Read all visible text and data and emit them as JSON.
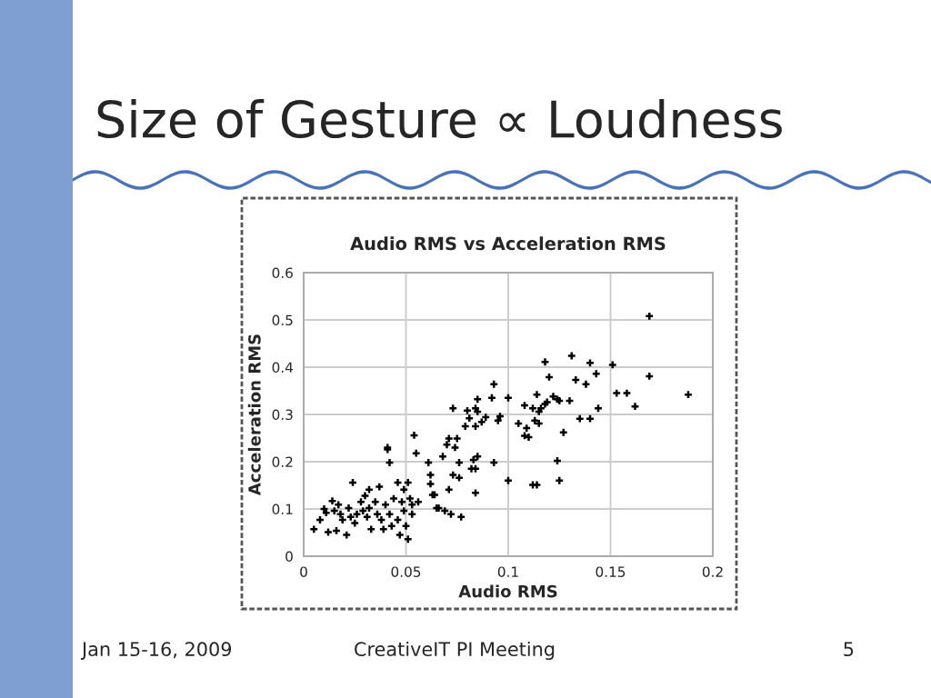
{
  "chart_data": {
    "type": "scatter",
    "title": "Audio RMS vs Acceleration RMS",
    "xlabel": "Audio RMS",
    "ylabel": "Acceleration RMS",
    "annotations": [
      "Size of Gesture ∝ Loudness",
      "Jan 15-16, 2009",
      "CreativeIT PI Meeting",
      "5"
    ],
    "x": [
      0.005,
      0.008,
      0.01,
      0.011,
      0.012,
      0.014,
      0.015,
      0.016,
      0.017,
      0.018,
      0.019,
      0.021,
      0.022,
      0.023,
      0.024,
      0.025,
      0.026,
      0.028,
      0.029,
      0.03,
      0.031,
      0.032,
      0.032,
      0.033,
      0.035,
      0.036,
      0.037,
      0.038,
      0.039,
      0.04,
      0.041,
      0.041,
      0.042,
      0.042,
      0.043,
      0.044,
      0.046,
      0.046,
      0.047,
      0.048,
      0.049,
      0.049,
      0.05,
      0.051,
      0.051,
      0.052,
      0.053,
      0.053,
      0.054,
      0.055,
      0.056,
      0.061,
      0.062,
      0.062,
      0.063,
      0.064,
      0.065,
      0.066,
      0.068,
      0.069,
      0.07,
      0.071,
      0.071,
      0.072,
      0.073,
      0.073,
      0.074,
      0.075,
      0.076,
      0.076,
      0.077,
      0.079,
      0.08,
      0.081,
      0.082,
      0.083,
      0.084,
      0.085,
      0.084,
      0.085,
      0.084,
      0.085,
      0.084,
      0.093,
      0.092,
      0.089,
      0.087,
      0.096,
      0.095,
      0.093,
      0.1,
      0.1,
      0.105,
      0.108,
      0.108,
      0.109,
      0.11,
      0.112,
      0.113,
      0.114,
      0.115,
      0.115,
      0.116,
      0.118,
      0.118,
      0.119,
      0.12,
      0.112,
      0.114,
      0.122,
      0.124,
      0.125,
      0.124,
      0.125,
      0.127,
      0.13,
      0.131,
      0.133,
      0.135,
      0.138,
      0.14,
      0.14,
      0.143,
      0.144,
      0.151,
      0.153,
      0.158,
      0.162,
      0.169,
      0.169,
      0.188
    ],
    "values": [
      0.057,
      0.077,
      0.1,
      0.092,
      0.051,
      0.117,
      0.096,
      0.054,
      0.109,
      0.089,
      0.077,
      0.045,
      0.102,
      0.083,
      0.156,
      0.07,
      0.089,
      0.115,
      0.096,
      0.128,
      0.083,
      0.102,
      0.141,
      0.057,
      0.115,
      0.089,
      0.147,
      0.077,
      0.057,
      0.109,
      0.226,
      0.23,
      0.198,
      0.089,
      0.064,
      0.122,
      0.077,
      0.156,
      0.045,
      0.115,
      0.141,
      0.096,
      0.064,
      0.036,
      0.156,
      0.122,
      0.109,
      0.089,
      0.256,
      0.218,
      0.115,
      0.198,
      0.153,
      0.172,
      0.13,
      0.13,
      0.102,
      0.102,
      0.211,
      0.096,
      0.236,
      0.249,
      0.141,
      0.089,
      0.172,
      0.313,
      0.23,
      0.249,
      0.198,
      0.166,
      0.083,
      0.275,
      0.308,
      0.292,
      0.185,
      0.204,
      0.134,
      0.332,
      0.313,
      0.306,
      0.275,
      0.211,
      0.185,
      0.364,
      0.335,
      0.294,
      0.284,
      0.296,
      0.287,
      0.198,
      0.335,
      0.16,
      0.281,
      0.319,
      0.255,
      0.271,
      0.252,
      0.313,
      0.287,
      0.342,
      0.281,
      0.306,
      0.313,
      0.411,
      0.322,
      0.326,
      0.379,
      0.151,
      0.151,
      0.338,
      0.332,
      0.329,
      0.202,
      0.16,
      0.262,
      0.329,
      0.424,
      0.373,
      0.291,
      0.364,
      0.409,
      0.291,
      0.386,
      0.313,
      0.405,
      0.345,
      0.345,
      0.317,
      0.508,
      0.381,
      0.342
    ],
    "color": "#000000",
    "marker": "cross",
    "xlim": [
      0,
      0.2
    ],
    "ylim": [
      0,
      0.6
    ],
    "xticks": [
      0,
      0.05,
      0.1,
      0.15,
      0.2
    ],
    "yticks": [
      0,
      0.1,
      0.2,
      0.3,
      0.4,
      0.5,
      0.6
    ],
    "grid": true
  }
}
